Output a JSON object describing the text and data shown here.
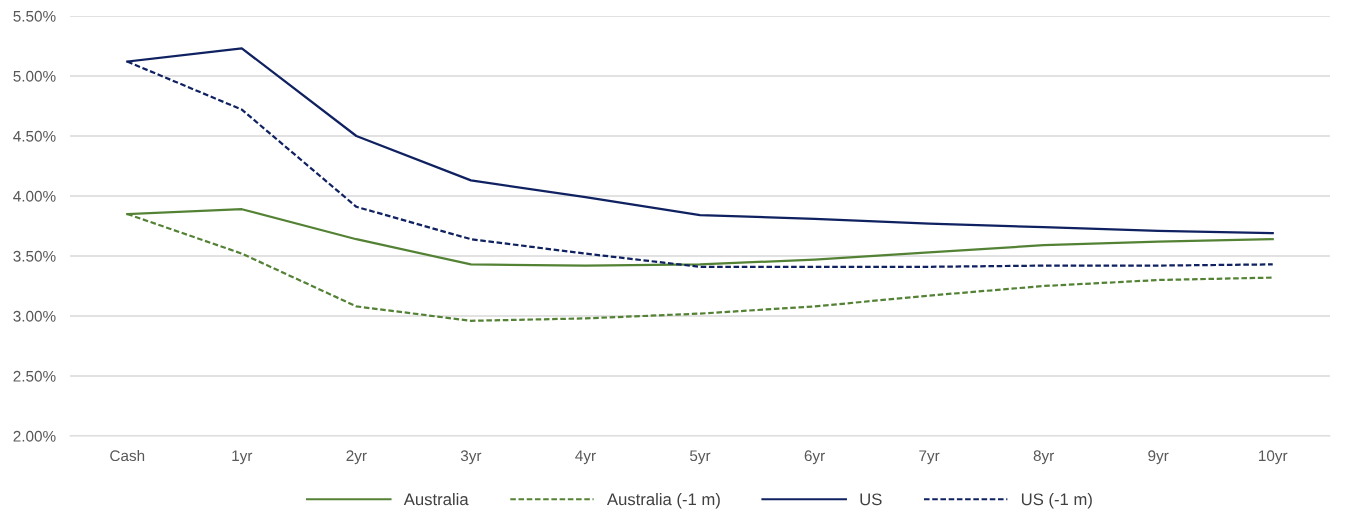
{
  "chart_data": {
    "type": "line",
    "categories": [
      "Cash",
      "1yr",
      "2yr",
      "3yr",
      "4yr",
      "5yr",
      "6yr",
      "7yr",
      "8yr",
      "9yr",
      "10yr"
    ],
    "series": [
      {
        "name": "Australia",
        "color": "#548235",
        "line_style": "solid",
        "values": [
          3.85,
          3.89,
          3.64,
          3.43,
          3.42,
          3.43,
          3.47,
          3.53,
          3.59,
          3.62,
          3.64
        ]
      },
      {
        "name": "Australia (-1 m)",
        "color": "#548235",
        "line_style": "dashed",
        "values": [
          3.85,
          3.52,
          3.08,
          2.96,
          2.98,
          3.02,
          3.08,
          3.17,
          3.25,
          3.3,
          3.32
        ]
      },
      {
        "name": "US",
        "color": "#0f2160",
        "line_style": "solid",
        "values": [
          5.12,
          5.23,
          4.5,
          4.13,
          3.99,
          3.84,
          3.81,
          3.77,
          3.74,
          3.71,
          3.69
        ]
      },
      {
        "name": "US (-1 m)",
        "color": "#0f2160",
        "line_style": "dashed",
        "values": [
          5.12,
          4.72,
          3.91,
          3.64,
          3.52,
          3.41,
          3.41,
          3.41,
          3.42,
          3.42,
          3.43
        ]
      }
    ],
    "ylim": [
      2.0,
      5.5
    ],
    "yticks": [
      {
        "value": 2.0,
        "label": "2.00%"
      },
      {
        "value": 2.5,
        "label": "2.50%"
      },
      {
        "value": 3.0,
        "label": "3.00%"
      },
      {
        "value": 3.5,
        "label": "3.50%"
      },
      {
        "value": 4.0,
        "label": "4.00%"
      },
      {
        "value": 4.5,
        "label": "4.50%"
      },
      {
        "value": 5.0,
        "label": "5.00%"
      },
      {
        "value": 5.5,
        "label": "5.50%"
      }
    ],
    "grid": "y",
    "legend": "bottom",
    "marker": "none"
  }
}
